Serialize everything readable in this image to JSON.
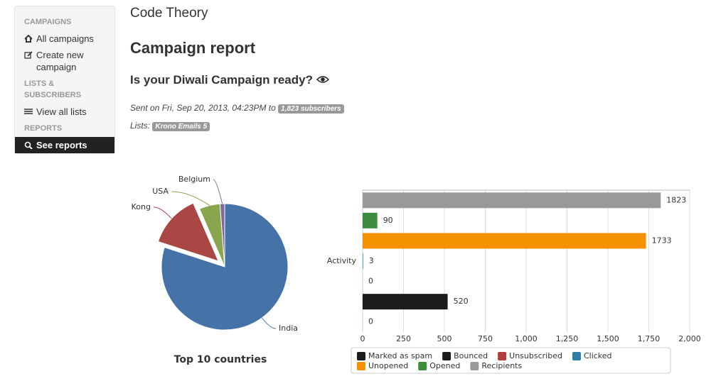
{
  "sidebar": {
    "sections": [
      {
        "heading": "CAMPAIGNS",
        "items": [
          "All campaigns",
          "Create new campaign"
        ]
      },
      {
        "heading": "LISTS & SUBSCRIBERS",
        "items": [
          "View all lists"
        ]
      },
      {
        "heading": "REPORTS",
        "items": [
          "See reports"
        ]
      }
    ]
  },
  "header": {
    "brand": "Code Theory",
    "title": "Campaign report",
    "subtitle": "Is your Diwali Campaign ready?",
    "sent": "Sent on Fri, Sep 20, 2013, 04:23PM to",
    "subscribers": "1,823 subscribers",
    "lists_label": "Lists:",
    "list": "Krono Emails 5"
  },
  "chart_data": [
    {
      "type": "pie",
      "title": "Top 10 countries",
      "categories": [
        "India",
        "Kong",
        "USA",
        "Belgium"
      ],
      "values": [
        80,
        13.5,
        5.3,
        1.2
      ],
      "colors": [
        "#4572a7",
        "#aa4643",
        "#89a54e",
        "#80699b"
      ]
    },
    {
      "type": "bar",
      "orientation": "horizontal",
      "categories": [
        "Activity"
      ],
      "series": [
        {
          "name": "Marked as spam",
          "color": "#1c1c1c",
          "values": [
            0
          ]
        },
        {
          "name": "Bounced",
          "color": "#1c1c1c",
          "values": [
            520
          ]
        },
        {
          "name": "Unsubscribed",
          "color": "#b23c3c",
          "values": [
            0
          ]
        },
        {
          "name": "Clicked",
          "color": "#2f7ea8",
          "values": [
            3
          ]
        },
        {
          "name": "Unopened",
          "color": "#f49100",
          "values": [
            1733
          ]
        },
        {
          "name": "Opened",
          "color": "#3d8b3d",
          "values": [
            90
          ]
        },
        {
          "name": "Recipients",
          "color": "#999999",
          "values": [
            1823
          ]
        }
      ],
      "xlim": [
        0,
        2000
      ],
      "xticks": [
        0,
        250,
        500,
        750,
        {
          "value": 1000,
          "label": "1,000"
        },
        {
          "value": 1250,
          "label": "1,250"
        },
        {
          "value": 1500,
          "label": "1,500"
        },
        {
          "value": 1750,
          "label": "1,750"
        },
        {
          "value": 2000,
          "label": "2,000"
        }
      ],
      "grid": true
    }
  ]
}
